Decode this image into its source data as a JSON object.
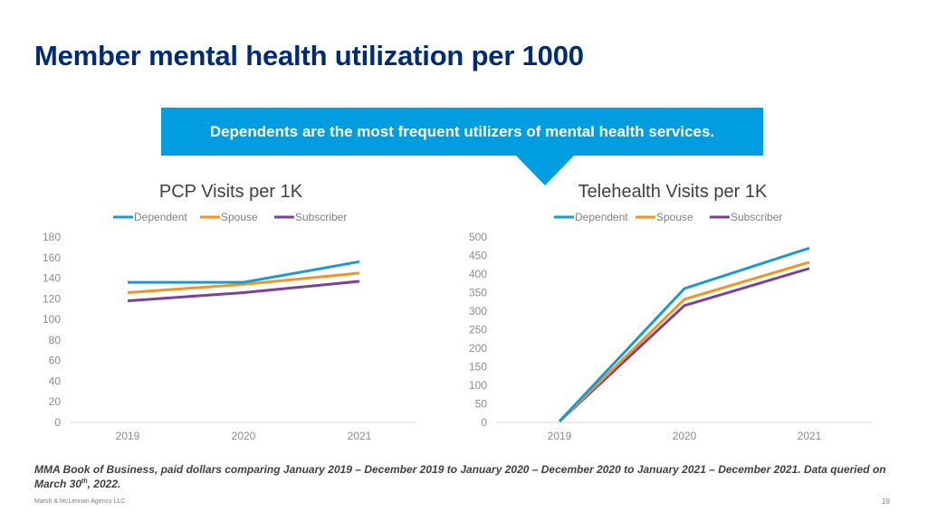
{
  "slide": {
    "title": "Member mental health utilization per 1000",
    "callout": "Dependents are the most frequent utilizers of mental health services.",
    "footnote_main": "MMA Book of Business, paid dollars comparing January 2019 – December 2019 to January 2020 – December 2020 to January 2021 – December 2021. Data queried on March 30",
    "footnote_sup": "th",
    "footnote_end": ", 2022.",
    "company": "Marsh & McLennan Agency LLC",
    "page_number": "19"
  },
  "colors": {
    "title": "#002C77",
    "callout": "#009DE0",
    "Dependent": "#1B9AD2",
    "Spouse": "#F29423",
    "Subscriber": "#7B3F9E"
  },
  "chart_data": [
    {
      "type": "line",
      "title": "PCP Visits per 1K",
      "categories": [
        "2019",
        "2020",
        "2021"
      ],
      "ylim": [
        0,
        180
      ],
      "yticks": [
        0,
        20,
        40,
        60,
        80,
        100,
        120,
        140,
        160,
        180
      ],
      "legend_position": "top",
      "grid": false,
      "series": [
        {
          "name": "Dependent",
          "values": [
            136,
            136,
            156
          ]
        },
        {
          "name": "Spouse",
          "values": [
            126,
            134,
            145
          ]
        },
        {
          "name": "Subscriber",
          "values": [
            118,
            126,
            137
          ]
        }
      ]
    },
    {
      "type": "line",
      "title": "Telehealth Visits per 1K",
      "categories": [
        "2019",
        "2020",
        "2021"
      ],
      "ylim": [
        0,
        500
      ],
      "yticks": [
        0,
        50,
        100,
        150,
        200,
        250,
        300,
        350,
        400,
        450,
        500
      ],
      "legend_position": "top",
      "grid": false,
      "series": [
        {
          "name": "Dependent",
          "values": [
            3,
            361,
            470
          ]
        },
        {
          "name": "Spouse",
          "values": [
            3,
            332,
            432
          ]
        },
        {
          "name": "Subscriber",
          "values": [
            3,
            315,
            415
          ]
        }
      ]
    }
  ]
}
